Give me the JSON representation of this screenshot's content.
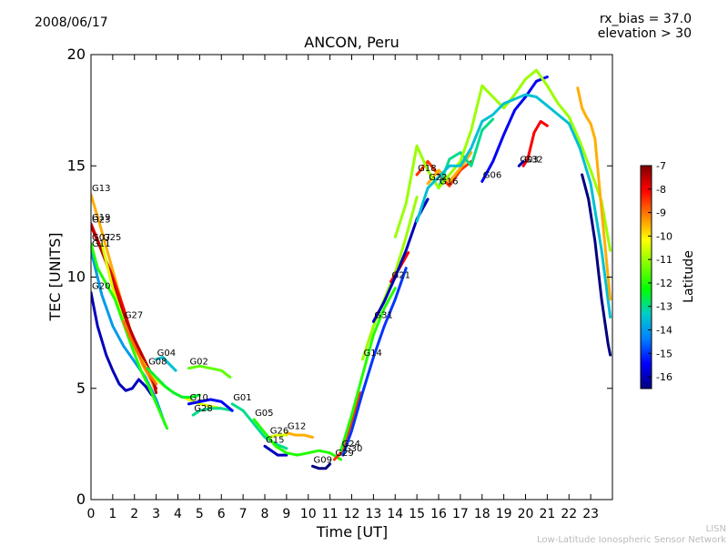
{
  "header": {
    "date": "2008/06/17",
    "title": "ANCON, Peru",
    "rx_bias": "rx_bias = 37.0",
    "elevation": "elevation > 30"
  },
  "footer": {
    "line1": "LISN",
    "line2": "Low-Latitude Ionospheric Sensor Network"
  },
  "chart_data": {
    "type": "line",
    "title": "ANCON, Peru",
    "xlabel": "Time [UT]",
    "ylabel": "TEC [UNITS]",
    "xlim": [
      0,
      24
    ],
    "ylim": [
      0,
      20
    ],
    "xticks": [
      "0",
      "1",
      "2",
      "3",
      "4",
      "5",
      "6",
      "7",
      "8",
      "9",
      "10",
      "11",
      "12",
      "13",
      "14",
      "15",
      "16",
      "17",
      "18",
      "19",
      "20",
      "21",
      "22",
      "23"
    ],
    "yticks": [
      0,
      5,
      10,
      15,
      20
    ],
    "grid": false,
    "colorbar": {
      "label": "Latitude",
      "range": [
        -16.5,
        -7
      ],
      "ticks": [
        -7,
        -8,
        -9,
        -10,
        -11,
        -12,
        -13,
        -14,
        -15,
        -16
      ],
      "colors": [
        "#00007f",
        "#0000ff",
        "#007fff",
        "#00cccc",
        "#00ff00",
        "#7fff00",
        "#ffff00",
        "#ff7f00",
        "#ff0000",
        "#7f0000"
      ]
    },
    "series": [
      {
        "name": "G13",
        "lat": -9.5,
        "x": [
          0,
          0.4,
          0.8,
          1.2,
          1.6,
          2.0,
          2.4,
          2.8,
          3.0
        ],
        "y": [
          13.7,
          12.4,
          11.0,
          9.6,
          8.2,
          7.0,
          6.0,
          5.3,
          4.8
        ]
      },
      {
        "name": "G19",
        "lat": -8.0,
        "x": [
          0,
          0.5,
          1.0,
          1.5,
          2.0,
          2.5,
          3.0
        ],
        "y": [
          12.4,
          11.2,
          10.0,
          8.6,
          7.0,
          6.0,
          5.0
        ]
      },
      {
        "name": "G23",
        "lat": -7.5,
        "x": [
          0,
          0.4,
          0.8,
          1.2,
          1.6,
          2.0,
          2.4,
          2.8,
          3.0
        ],
        "y": [
          12.3,
          11.4,
          10.4,
          9.1,
          8.1,
          7.2,
          6.4,
          5.6,
          4.8
        ]
      },
      {
        "name": "G25",
        "lat": -10.5,
        "x": [
          0.5,
          1.0,
          1.5,
          2.0,
          2.5,
          3.0,
          3.5,
          4.0,
          4.5,
          5.0,
          5.5,
          6.0
        ],
        "y": [
          11.5,
          9.5,
          8.0,
          6.8,
          6.0,
          5.4,
          5.0,
          4.7,
          4.5,
          4.3,
          4.2,
          4.1
        ]
      },
      {
        "name": "G11",
        "lat": -14.0,
        "x": [
          0,
          0.5,
          1.0,
          1.5,
          2.0,
          2.5,
          3.0,
          3.4
        ],
        "y": [
          11.2,
          9.2,
          7.8,
          6.9,
          6.2,
          5.5,
          4.5,
          3.4
        ]
      },
      {
        "name": "G20",
        "lat": -16.0,
        "x": [
          0,
          0.3,
          0.7,
          1.0,
          1.3,
          1.6,
          1.9,
          2.2,
          2.5,
          2.8
        ],
        "y": [
          9.3,
          7.8,
          6.5,
          5.8,
          5.2,
          4.9,
          5.0,
          5.4,
          5.1,
          4.7
        ]
      },
      {
        "name": "G07",
        "lat": -12.0,
        "x": [
          0,
          0.3,
          0.7,
          1.1,
          1.5,
          1.9,
          2.3,
          2.7,
          3.1,
          3.5
        ],
        "y": [
          11.5,
          10.4,
          9.7,
          9.0,
          7.9,
          6.8,
          5.8,
          5.0,
          4.1,
          3.2
        ]
      },
      {
        "name": "G27",
        "lat": -9.0,
        "x": [
          1.5,
          1.8,
          2.1,
          2.4,
          2.7,
          3.0
        ],
        "y": [
          8.0,
          7.3,
          6.7,
          6.1,
          5.6,
          5.2
        ]
      },
      {
        "name": "G04",
        "lat": -13.5,
        "x": [
          3.0,
          3.3,
          3.6,
          3.9
        ],
        "y": [
          6.3,
          6.4,
          6.1,
          5.8
        ]
      },
      {
        "name": "G08",
        "lat": -12.5,
        "x": [
          2.6,
          3.0,
          3.4,
          3.8,
          4.2,
          4.6,
          5.0
        ],
        "y": [
          5.9,
          5.5,
          5.1,
          4.8,
          4.6,
          4.6,
          4.7
        ]
      },
      {
        "name": "G02",
        "lat": -11.5,
        "x": [
          4.5,
          5.0,
          5.5,
          6.0,
          6.4
        ],
        "y": [
          5.9,
          6.0,
          5.9,
          5.8,
          5.5
        ]
      },
      {
        "name": "G28",
        "lat": -13.0,
        "x": [
          4.7,
          5.0,
          5.5,
          6.0,
          6.5
        ],
        "y": [
          3.8,
          4.0,
          4.1,
          4.1,
          4.0
        ]
      },
      {
        "name": "G10",
        "lat": -15.5,
        "x": [
          4.5,
          5.0,
          5.5,
          6.0,
          6.5
        ],
        "y": [
          4.3,
          4.4,
          4.5,
          4.4,
          4.0
        ]
      },
      {
        "name": "G01",
        "lat": -13.0,
        "x": [
          6.5,
          7.0,
          7.5,
          8.0,
          8.5,
          9.0
        ],
        "y": [
          4.3,
          4.0,
          3.4,
          2.8,
          2.5,
          2.3
        ]
      },
      {
        "name": "G26",
        "lat": -10.5,
        "x": [
          8.2,
          8.6,
          9.0
        ],
        "y": [
          2.8,
          2.9,
          2.9
        ]
      },
      {
        "name": "G15",
        "lat": -16.0,
        "x": [
          8.0,
          8.3,
          8.6,
          9.0
        ],
        "y": [
          2.4,
          2.2,
          2.0,
          2.0
        ]
      },
      {
        "name": "G12",
        "lat": -9.5,
        "x": [
          9.0,
          9.4,
          9.8,
          10.2
        ],
        "y": [
          3.0,
          2.9,
          2.9,
          2.8
        ]
      },
      {
        "name": "G05",
        "lat": -12.0,
        "x": [
          7.5,
          8.0,
          8.5,
          9.0,
          9.5,
          10.0,
          10.5,
          11.0,
          11.5
        ],
        "y": [
          3.6,
          3.0,
          2.4,
          2.1,
          2.0,
          2.1,
          2.2,
          2.1,
          1.8
        ]
      },
      {
        "name": "G09",
        "lat": -16.5,
        "x": [
          10.2,
          10.5,
          10.8,
          11.0
        ],
        "y": [
          1.5,
          1.4,
          1.4,
          1.6
        ]
      },
      {
        "name": "G29",
        "lat": -8.5,
        "x": [
          11.2,
          11.5,
          11.8,
          12.1,
          12.4
        ],
        "y": [
          1.8,
          2.1,
          2.9,
          3.8,
          4.8
        ]
      },
      {
        "name": "G24",
        "lat": -12.0,
        "x": [
          11.5,
          12.0,
          12.5,
          13.0,
          13.5,
          14.0
        ],
        "y": [
          2.2,
          3.8,
          5.6,
          7.4,
          8.6,
          9.5
        ]
      },
      {
        "name": "G30",
        "lat": -15.0,
        "x": [
          11.6,
          12.0,
          12.5,
          13.0,
          13.5,
          14.0,
          14.5
        ],
        "y": [
          2.0,
          3.1,
          4.8,
          6.4,
          7.8,
          9.0,
          10.4
        ]
      },
      {
        "name": "G14",
        "lat": -11.0,
        "x": [
          12.5,
          13.0,
          13.5,
          14.0,
          14.5,
          15.0
        ],
        "y": [
          6.3,
          7.8,
          9.0,
          10.2,
          11.8,
          13.6
        ]
      },
      {
        "name": "G21",
        "lat": -8.0,
        "x": [
          13.8,
          14.2,
          14.6
        ],
        "y": [
          9.8,
          10.4,
          11.1
        ]
      },
      {
        "name": "G31",
        "lat": -16.0,
        "x": [
          13.0,
          13.5,
          14.0,
          14.5,
          15.0,
          15.5
        ],
        "y": [
          8.0,
          8.9,
          10.0,
          11.2,
          12.6,
          13.5
        ]
      },
      {
        "name": "G18",
        "lat": -8.5,
        "x": [
          15.0,
          15.5,
          16.0,
          16.5,
          17.0,
          17.5
        ],
        "y": [
          14.6,
          15.2,
          14.6,
          14.1,
          14.8,
          15.2
        ]
      },
      {
        "name": "G22",
        "lat": -9.5,
        "x": [
          15.5,
          16.0,
          16.5,
          17.0,
          17.5
        ],
        "y": [
          14.2,
          14.8,
          14.3,
          14.9,
          15.6
        ]
      },
      {
        "name": "G16",
        "lat": -13.0,
        "x": [
          16.0,
          16.5,
          17.0,
          17.5,
          18.0,
          18.5
        ],
        "y": [
          14.0,
          15.3,
          15.6,
          15.0,
          16.6,
          17.1
        ]
      },
      {
        "name": "G06",
        "lat": -15.5,
        "x": [
          18.0,
          18.5,
          19.0,
          19.5,
          20.0,
          20.5,
          21.0
        ],
        "y": [
          14.3,
          15.2,
          16.4,
          17.5,
          18.1,
          18.8,
          19.0
        ]
      },
      {
        "name": "G03",
        "lat": -16.0,
        "x": [
          19.7,
          19.9
        ],
        "y": [
          15.0,
          15.2
        ]
      },
      {
        "name": "G32",
        "lat": -8.0,
        "x": [
          19.9,
          20.1,
          20.4,
          20.7,
          21.0
        ],
        "y": [
          15.0,
          15.3,
          16.5,
          17.0,
          16.8
        ]
      },
      {
        "name": "",
        "lat": -11.0,
        "x": [
          14.0,
          14.5,
          15.0,
          15.5,
          16.0,
          16.5,
          17.0,
          17.5,
          18.0,
          18.5,
          19.0,
          19.5,
          20.0,
          20.5,
          21.0,
          21.5,
          22.0,
          22.5,
          23.0,
          23.5,
          23.9
        ],
        "y": [
          11.8,
          13.3,
          15.9,
          14.8,
          14.0,
          14.6,
          15.2,
          16.6,
          18.6,
          18.1,
          17.6,
          18.2,
          18.9,
          19.3,
          18.6,
          17.8,
          17.2,
          16.1,
          14.8,
          13.4,
          11.2
        ]
      },
      {
        "name": "",
        "lat": -13.5,
        "x": [
          15.0,
          15.5,
          16.0,
          16.5,
          17.0,
          17.5,
          18.0,
          18.5,
          19.0,
          19.5,
          20.0,
          20.5,
          21.0,
          21.5,
          22.0,
          22.5,
          23.0,
          23.5,
          23.9
        ],
        "y": [
          12.5,
          14.0,
          14.5,
          15.0,
          15.0,
          15.8,
          17.0,
          17.3,
          17.8,
          18.0,
          18.2,
          18.1,
          17.7,
          17.3,
          16.9,
          15.8,
          14.2,
          11.2,
          8.2
        ]
      },
      {
        "name": "",
        "lat": -9.5,
        "x": [
          22.4,
          22.6,
          22.8,
          23.0,
          23.2,
          23.5,
          23.9
        ],
        "y": [
          18.5,
          17.6,
          17.2,
          16.9,
          16.2,
          13.0,
          9.0
        ]
      },
      {
        "name": "",
        "lat": -16.5,
        "x": [
          22.6,
          22.9,
          23.2,
          23.5,
          23.8,
          23.9
        ],
        "y": [
          14.6,
          13.5,
          11.6,
          9.0,
          7.0,
          6.5
        ]
      }
    ]
  }
}
